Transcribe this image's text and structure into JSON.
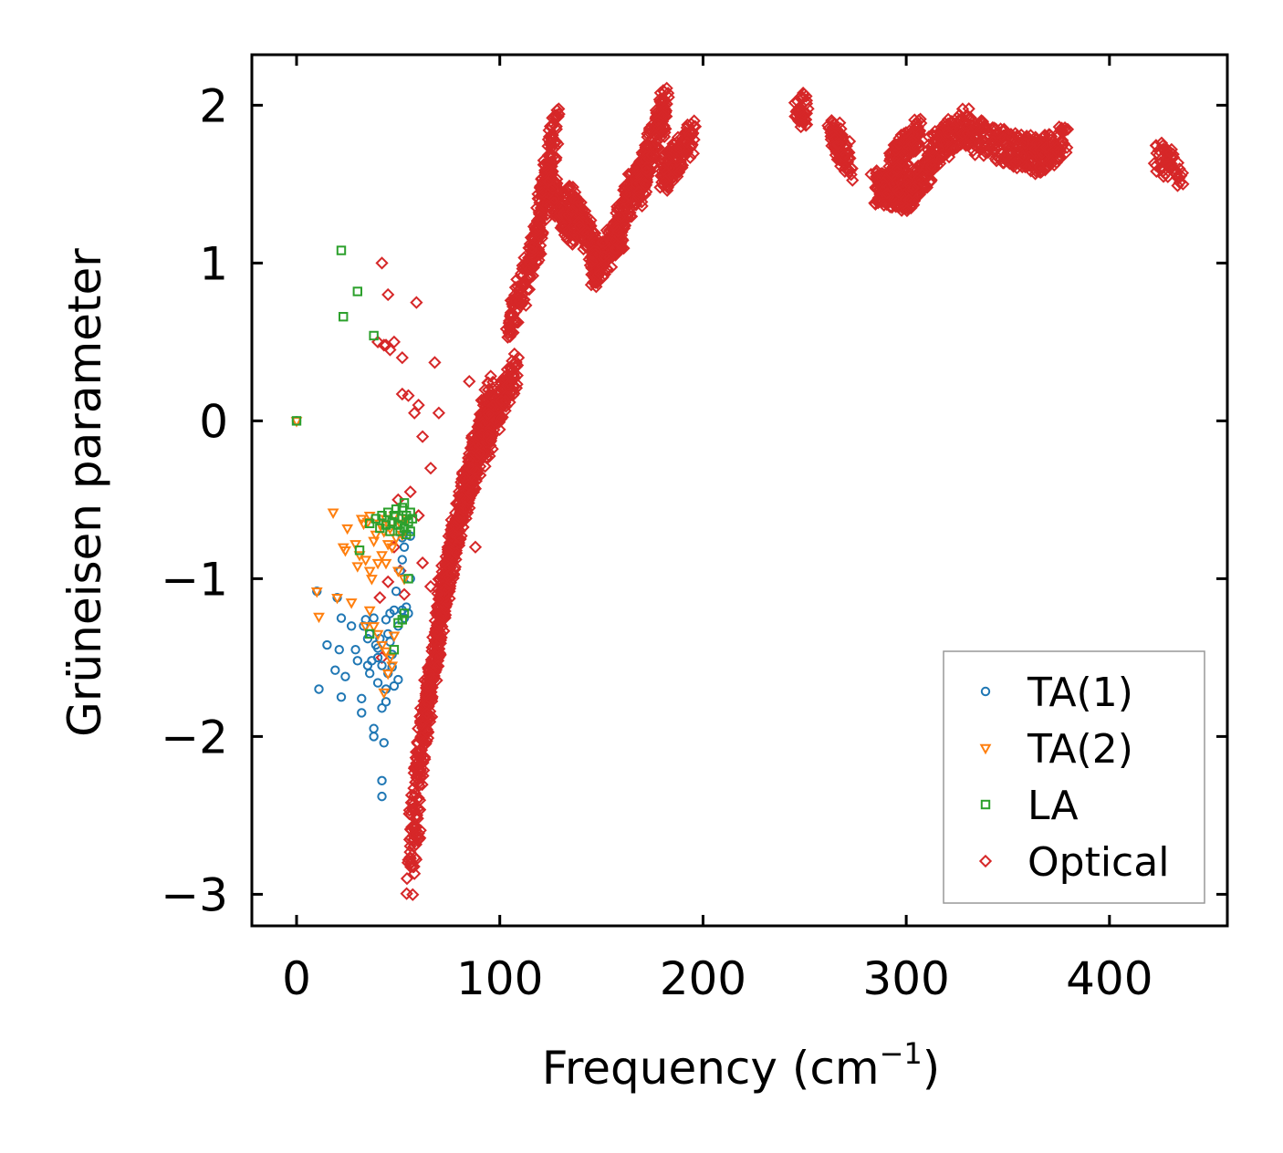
{
  "chart_data": {
    "type": "scatter",
    "title": "",
    "xlabel": "Frequency (cm",
    "xlabel_sup": "−1",
    "xlabel_close": ")",
    "ylabel": "Grüneisen parameter",
    "xlim": [
      -22,
      458
    ],
    "ylim": [
      -3.2,
      2.32
    ],
    "xticks": [
      0,
      100,
      200,
      300,
      400
    ],
    "xtick_labels": [
      "0",
      "100",
      "200",
      "300",
      "400"
    ],
    "yticks": [
      -3,
      -2,
      -1,
      0,
      1,
      2
    ],
    "ytick_labels": [
      "−3",
      "−2",
      "−1",
      "0",
      "1",
      "2"
    ],
    "grid": false,
    "legend_position": "bottom-right",
    "series": [
      {
        "name": "TA(1)",
        "marker": "circle",
        "color": "#1f77b4",
        "points": [
          [
            0,
            0
          ],
          [
            10,
            -1.08
          ],
          [
            11,
            -1.7
          ],
          [
            15,
            -1.42
          ],
          [
            19,
            -1.58
          ],
          [
            20,
            -1.12
          ],
          [
            21,
            -1.45
          ],
          [
            22,
            -1.25
          ],
          [
            22,
            -1.75
          ],
          [
            24,
            -1.62
          ],
          [
            27,
            -1.3
          ],
          [
            29,
            -1.45
          ],
          [
            30,
            -1.52
          ],
          [
            32,
            -1.76
          ],
          [
            32,
            -1.85
          ],
          [
            33,
            -1.3
          ],
          [
            35,
            -1.38
          ],
          [
            35,
            -1.55
          ],
          [
            36,
            -1.35
          ],
          [
            36,
            -1.6
          ],
          [
            38,
            -1.95
          ],
          [
            38,
            -2.0
          ],
          [
            39,
            -1.42
          ],
          [
            40,
            -1.66
          ],
          [
            40,
            -1.5
          ],
          [
            41,
            -1.38
          ],
          [
            42,
            -1.55
          ],
          [
            42,
            -1.82
          ],
          [
            42,
            -2.28
          ],
          [
            42,
            -2.38
          ],
          [
            43,
            -2.04
          ],
          [
            44,
            -1.7
          ],
          [
            44,
            -1.78
          ],
          [
            45,
            -1.35
          ],
          [
            45,
            -1.6
          ],
          [
            46,
            -1.22
          ],
          [
            47,
            -1.48
          ],
          [
            47,
            -1.56
          ],
          [
            48,
            -1.2
          ],
          [
            48,
            -1.68
          ],
          [
            49,
            -1.08
          ],
          [
            50,
            -1.3
          ],
          [
            50,
            -1.64
          ],
          [
            51,
            -0.95
          ],
          [
            52,
            -0.88
          ],
          [
            52,
            -0.74
          ],
          [
            52,
            -1.2
          ],
          [
            53,
            -0.8
          ],
          [
            53,
            -1.25
          ],
          [
            54,
            -1.18
          ],
          [
            55,
            -1.22
          ],
          [
            56,
            -0.73
          ],
          [
            56,
            -1.0
          ],
          [
            44,
            -1.26
          ],
          [
            38,
            -1.25
          ],
          [
            40,
            -1.44
          ],
          [
            46,
            -1.4
          ],
          [
            34,
            -1.26
          ],
          [
            37,
            -1.52
          ]
        ]
      },
      {
        "name": "TA(2)",
        "marker": "triangle-down",
        "color": "#ff7f0e",
        "points": [
          [
            0,
            0
          ],
          [
            10,
            -1.08
          ],
          [
            11,
            -1.24
          ],
          [
            18,
            -0.58
          ],
          [
            20,
            -1.12
          ],
          [
            23,
            -0.8
          ],
          [
            24,
            -0.82
          ],
          [
            25,
            -0.68
          ],
          [
            27,
            -1.15
          ],
          [
            29,
            -0.78
          ],
          [
            30,
            -0.92
          ],
          [
            31,
            -0.85
          ],
          [
            32,
            -0.62
          ],
          [
            33,
            -0.65
          ],
          [
            34,
            -0.88
          ],
          [
            35,
            -0.64
          ],
          [
            36,
            -0.6
          ],
          [
            36,
            -0.95
          ],
          [
            37,
            -1.0
          ],
          [
            38,
            -0.76
          ],
          [
            39,
            -0.72
          ],
          [
            40,
            -0.9
          ],
          [
            41,
            -0.65
          ],
          [
            42,
            -0.85
          ],
          [
            43,
            -0.7
          ],
          [
            44,
            -0.62
          ],
          [
            44,
            -0.9
          ],
          [
            45,
            -0.78
          ],
          [
            46,
            -0.68
          ],
          [
            47,
            -0.8
          ],
          [
            48,
            -0.6
          ],
          [
            49,
            -0.74
          ],
          [
            50,
            -0.95
          ],
          [
            51,
            -0.65
          ],
          [
            52,
            -0.72
          ],
          [
            53,
            -1.0
          ],
          [
            54,
            -0.62
          ],
          [
            38,
            -1.3
          ],
          [
            40,
            -1.35
          ],
          [
            42,
            -1.42
          ],
          [
            44,
            -1.46
          ],
          [
            46,
            -1.5
          ],
          [
            45,
            -1.6
          ],
          [
            47,
            -1.55
          ],
          [
            43,
            -1.72
          ],
          [
            34,
            -1.3
          ],
          [
            36,
            -1.2
          ],
          [
            48,
            -1.36
          ]
        ]
      },
      {
        "name": "LA",
        "marker": "square",
        "color": "#2ca02c",
        "points": [
          [
            0,
            0
          ],
          [
            22,
            1.08
          ],
          [
            23,
            0.66
          ],
          [
            30,
            0.82
          ],
          [
            31,
            -0.82
          ],
          [
            36,
            -0.65
          ],
          [
            38,
            0.54
          ],
          [
            39,
            -0.62
          ],
          [
            41,
            -0.68
          ],
          [
            42,
            -0.6
          ],
          [
            44,
            -0.66
          ],
          [
            45,
            -0.58
          ],
          [
            46,
            -0.7
          ],
          [
            47,
            -0.64
          ],
          [
            48,
            -0.6
          ],
          [
            49,
            -0.56
          ],
          [
            50,
            -0.66
          ],
          [
            51,
            -0.7
          ],
          [
            52,
            -0.55
          ],
          [
            52,
            -0.62
          ],
          [
            53,
            -0.52
          ],
          [
            53,
            -0.68
          ],
          [
            54,
            -0.6
          ],
          [
            54,
            -0.72
          ],
          [
            55,
            -0.64
          ],
          [
            56,
            -0.58
          ],
          [
            56,
            -0.7
          ],
          [
            57,
            -0.62
          ],
          [
            55,
            -1.0
          ],
          [
            53,
            -1.22
          ],
          [
            52,
            -1.26
          ],
          [
            50,
            -1.28
          ],
          [
            48,
            -1.45
          ],
          [
            36,
            -1.35
          ]
        ]
      },
      {
        "name": "Optical",
        "marker": "diamond",
        "color": "#d62728",
        "points": [],
        "point_generation": "dense clusters drawn from branches below",
        "branches": [
          {
            "from": [
              55,
              -2.95
            ],
            "to": [
              60,
              -2.5
            ],
            "n": 40
          },
          {
            "from": [
              57,
              -2.6
            ],
            "to": [
              65,
              -1.6
            ],
            "n": 90
          },
          {
            "from": [
              60,
              -2.2
            ],
            "to": [
              72,
              -1.2
            ],
            "n": 120
          },
          {
            "from": [
              64,
              -1.8
            ],
            "to": [
              78,
              -0.7
            ],
            "n": 160
          },
          {
            "from": [
              70,
              -1.2
            ],
            "to": [
              88,
              -0.2
            ],
            "n": 200
          },
          {
            "from": [
              76,
              -0.8
            ],
            "to": [
              96,
              0.2
            ],
            "n": 220
          },
          {
            "from": [
              84,
              -0.4
            ],
            "to": [
              108,
              0.35
            ],
            "n": 200
          },
          {
            "from": [
              104,
              0.55
            ],
            "to": [
              120,
              1.2
            ],
            "n": 120
          },
          {
            "from": [
              116,
              1.0
            ],
            "to": [
              128,
              1.9
            ],
            "n": 160
          },
          {
            "from": [
              122,
              1.55
            ],
            "to": [
              136,
              1.2
            ],
            "n": 160
          },
          {
            "from": [
              134,
              1.4
            ],
            "to": [
              150,
              1.0
            ],
            "n": 180
          },
          {
            "from": [
              146,
              0.95
            ],
            "to": [
              160,
              1.2
            ],
            "n": 140
          },
          {
            "from": [
              158,
              1.25
            ],
            "to": [
              172,
              1.65
            ],
            "n": 160
          },
          {
            "from": [
              168,
              1.45
            ],
            "to": [
              182,
              2.02
            ],
            "n": 160
          },
          {
            "from": [
              180,
              1.55
            ],
            "to": [
              195,
              1.8
            ],
            "n": 140
          },
          {
            "from": [
              247,
              1.95
            ],
            "to": [
              251,
              2.0
            ],
            "n": 40
          },
          {
            "from": [
              263,
              1.85
            ],
            "to": [
              272,
              1.62
            ],
            "n": 90
          },
          {
            "from": [
              284,
              1.48
            ],
            "to": [
              300,
              1.45
            ],
            "n": 140
          },
          {
            "from": [
              292,
              1.6
            ],
            "to": [
              306,
              1.82
            ],
            "n": 140
          },
          {
            "from": [
              298,
              1.4
            ],
            "to": [
              312,
              1.6
            ],
            "n": 120
          },
          {
            "from": [
              312,
              1.7
            ],
            "to": [
              330,
              1.88
            ],
            "n": 140
          },
          {
            "from": [
              330,
              1.82
            ],
            "to": [
              352,
              1.72
            ],
            "n": 110
          },
          {
            "from": [
              352,
              1.72
            ],
            "to": [
              368,
              1.68
            ],
            "n": 90
          },
          {
            "from": [
              364,
              1.65
            ],
            "to": [
              378,
              1.78
            ],
            "n": 100
          },
          {
            "from": [
              422,
              1.7
            ],
            "to": [
              436,
              1.54
            ],
            "n": 50
          }
        ],
        "outliers": [
          [
            42,
            1.0
          ],
          [
            45,
            0.8
          ],
          [
            59,
            0.75
          ],
          [
            40,
            0.5
          ],
          [
            44,
            0.48
          ],
          [
            48,
            0.5
          ],
          [
            52,
            0.4
          ],
          [
            68,
            0.37
          ],
          [
            52,
            0.17
          ],
          [
            55,
            0.16
          ],
          [
            60,
            0.1
          ],
          [
            58,
            0.05
          ],
          [
            70,
            0.05
          ],
          [
            43,
            0.48
          ],
          [
            46,
            0.45
          ],
          [
            62,
            -0.1
          ],
          [
            66,
            -0.3
          ],
          [
            56,
            -0.45
          ],
          [
            60,
            -0.6
          ],
          [
            48,
            -0.8
          ],
          [
            51,
            -0.95
          ],
          [
            45,
            -1.02
          ],
          [
            53,
            -1.1
          ],
          [
            41,
            -1.12
          ],
          [
            42,
            -1.5
          ],
          [
            50,
            -0.5
          ],
          [
            62,
            -0.9
          ],
          [
            66,
            -1.05
          ],
          [
            88,
            -0.8
          ],
          [
            85,
            0.25
          ]
        ]
      }
    ]
  }
}
